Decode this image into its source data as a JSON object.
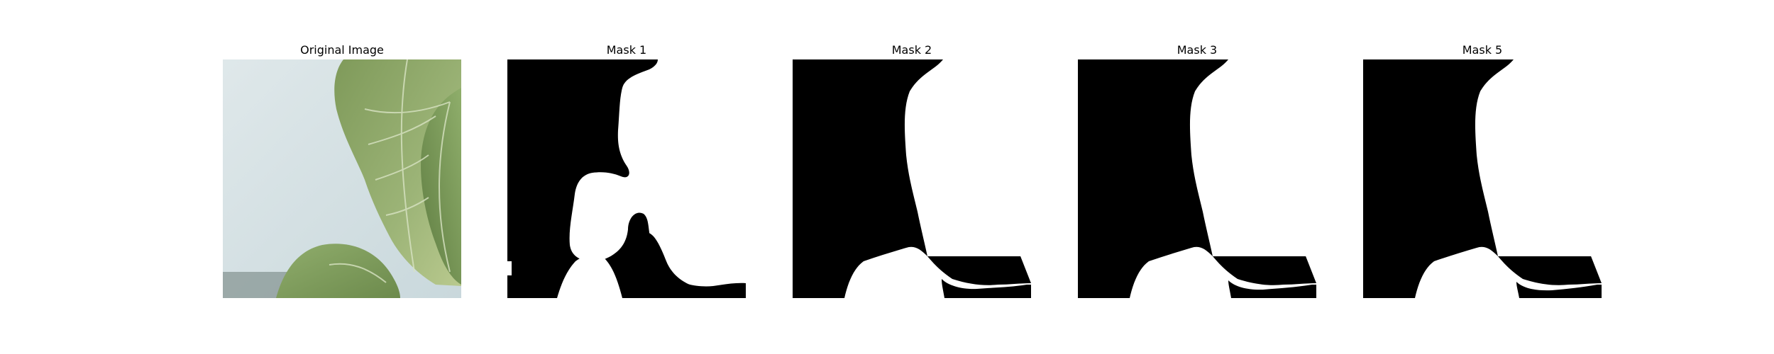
{
  "figure": {
    "panels": [
      {
        "title": "Original Image",
        "kind": "photo",
        "icon": "leaf-photo"
      },
      {
        "title": "Mask 1",
        "kind": "mask",
        "icon": "segmentation-mask"
      },
      {
        "title": "Mask 2",
        "kind": "mask",
        "icon": "segmentation-mask"
      },
      {
        "title": "Mask 3",
        "kind": "mask",
        "icon": "segmentation-mask"
      },
      {
        "title": "Mask 5",
        "kind": "mask",
        "icon": "segmentation-mask"
      }
    ],
    "colors": {
      "background": "#ffffff",
      "mask_foreground": "#ffffff",
      "mask_background": "#000000",
      "sky": "#d6e2e4",
      "leaf_light": "#a9bf84",
      "leaf_dark": "#6e8a4e"
    }
  }
}
